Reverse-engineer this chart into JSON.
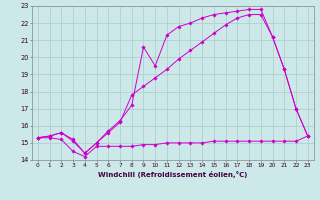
{
  "xlabel": "Windchill (Refroidissement éolien,°C)",
  "bg_color": "#cce8e8",
  "grid_color": "#aacccc",
  "line_color": "#cc00cc",
  "xlim": [
    -0.5,
    23.5
  ],
  "ylim": [
    14,
    23
  ],
  "xticks": [
    0,
    1,
    2,
    3,
    4,
    5,
    6,
    7,
    8,
    9,
    10,
    11,
    12,
    13,
    14,
    15,
    16,
    17,
    18,
    19,
    20,
    21,
    22,
    23
  ],
  "yticks": [
    14,
    15,
    16,
    17,
    18,
    19,
    20,
    21,
    22,
    23
  ],
  "s1_x": [
    0,
    1,
    2,
    3,
    4,
    5,
    6,
    7,
    8,
    9,
    10,
    11,
    12,
    13,
    14,
    15,
    16,
    17,
    18,
    19,
    20,
    21,
    22,
    23
  ],
  "s1_y": [
    15.3,
    15.3,
    15.2,
    14.5,
    14.2,
    14.8,
    14.8,
    14.8,
    14.8,
    14.9,
    14.9,
    15.0,
    15.0,
    15.0,
    15.0,
    15.1,
    15.1,
    15.1,
    15.1,
    15.1,
    15.1,
    15.1,
    15.1,
    15.4
  ],
  "s2_x": [
    0,
    1,
    2,
    3,
    4,
    5,
    6,
    7,
    8,
    9,
    10,
    11,
    12,
    13,
    14,
    15,
    16,
    17,
    18,
    19,
    20,
    21,
    22,
    23
  ],
  "s2_y": [
    15.3,
    15.4,
    15.6,
    15.1,
    14.4,
    15.0,
    15.6,
    16.2,
    17.8,
    18.3,
    18.8,
    19.3,
    19.9,
    20.4,
    20.9,
    21.4,
    21.9,
    22.3,
    22.5,
    22.5,
    21.2,
    19.3,
    17.0,
    15.4
  ],
  "s3_x": [
    0,
    1,
    2,
    3,
    4,
    5,
    6,
    7,
    8,
    9,
    10,
    11,
    12,
    13,
    14,
    15,
    16,
    17,
    18,
    19,
    20,
    21,
    22,
    23
  ],
  "s3_y": [
    15.3,
    15.4,
    15.6,
    15.2,
    14.4,
    15.0,
    15.7,
    16.3,
    17.2,
    20.6,
    19.5,
    21.3,
    21.8,
    22.0,
    22.3,
    22.5,
    22.6,
    22.7,
    22.8,
    22.8,
    21.2,
    19.3,
    17.0,
    15.4
  ]
}
